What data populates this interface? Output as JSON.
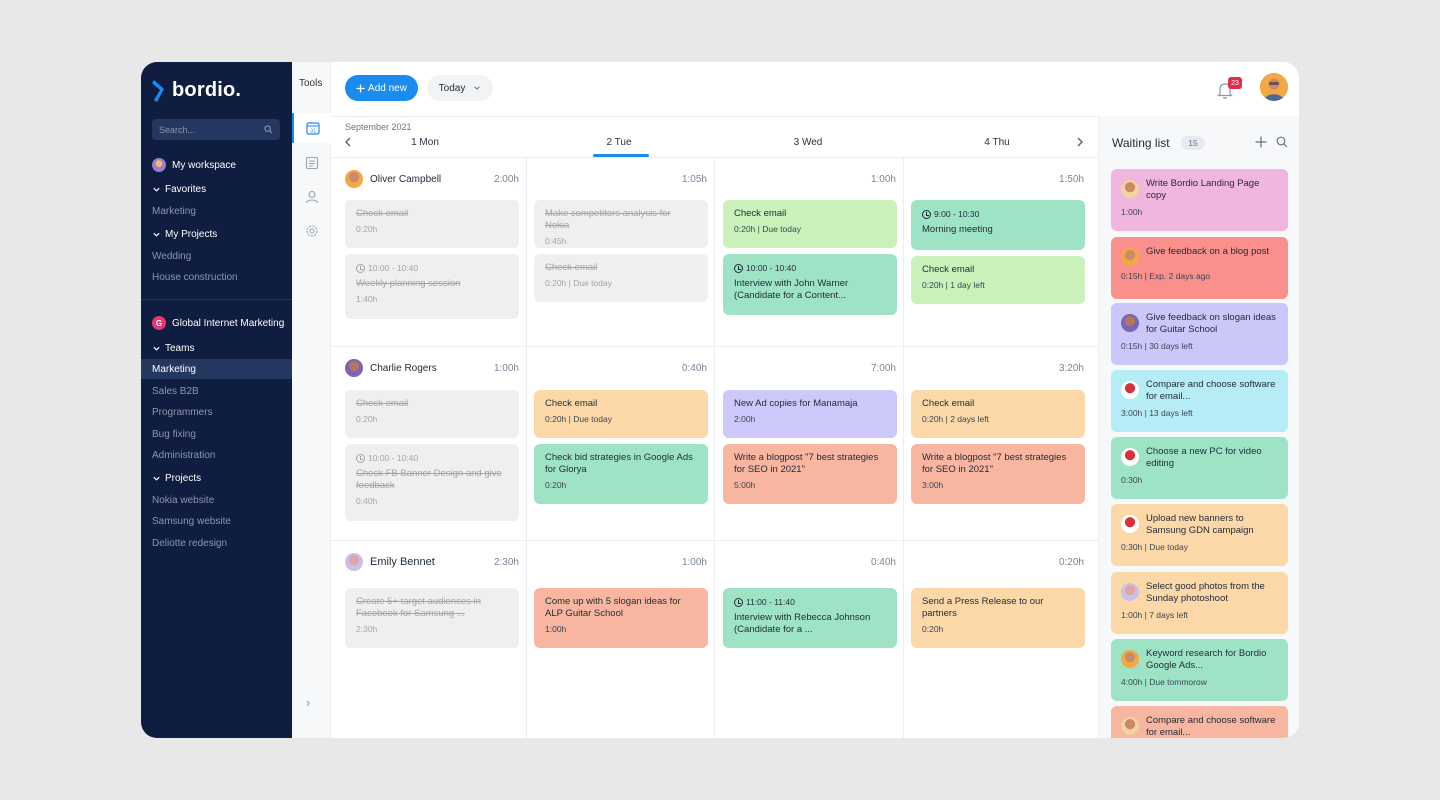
{
  "sidebar": {
    "logo": "bordio.",
    "search_placeholder": "Search...",
    "workspace": "My workspace",
    "favorites": "Favorites",
    "favorites_items": [
      "Marketing"
    ],
    "my_projects": "My Projects",
    "my_projects_items": [
      "Wedding",
      "House construction"
    ],
    "org": "Global Internet Marketing",
    "org_letter": "G",
    "teams": "Teams",
    "teams_items": [
      "Marketing",
      "Sales B2B",
      "Programmers",
      "Bug fixing",
      "Administration"
    ],
    "projects": "Projects",
    "projects_items": [
      "Nokia website",
      "Samsung website",
      "Deliotte redesign"
    ],
    "collapse_icon": "›"
  },
  "tools": {
    "label": "Tools",
    "calendar_day": "31"
  },
  "topbar": {
    "add_new": "Add new",
    "today": "Today",
    "notification_count": "23"
  },
  "calendar": {
    "month": "September 2021",
    "days": [
      "1 Mon",
      "2 Tue",
      "3 Wed",
      "4 Thu"
    ],
    "rows": [
      {
        "name": "Oliver Campbell",
        "hours": [
          "2:00h",
          "1:05h",
          "1:00h",
          "1:50h"
        ],
        "cards": [
          {
            "title": "Check email",
            "meta": "0:20h"
          },
          {
            "time": "10:00 - 10:40",
            "title": "Weekly planning session",
            "meta": "1:40h"
          },
          {
            "title": "Make competitors analysis for Nokia",
            "meta": "0:45h"
          },
          {
            "title": "Check email",
            "meta": "0:20h | Due today"
          },
          {
            "title": "Check email",
            "meta": "0:20h | Due today"
          },
          {
            "time": "10:00 - 10:40",
            "title": "Interview with John Warner (Candidate for a Content...",
            "meta": ""
          },
          {
            "time": "9:00 - 10:30",
            "title": "Morning meeting",
            "meta": ""
          },
          {
            "title": "Check email",
            "meta": "0:20h | 1 day left"
          }
        ]
      },
      {
        "name": "Charlie Rogers",
        "hours": [
          "1:00h",
          "0:40h",
          "7:00h",
          "3:20h"
        ],
        "cards": [
          {
            "title": "Check email",
            "meta": "0:20h"
          },
          {
            "time": "10:00 - 10:40",
            "title": "Check FB Banner Design and give feedback",
            "meta": "0:40h"
          },
          {
            "title": "Check email",
            "meta": "0:20h | Due today"
          },
          {
            "title": "Check bid strategies in Google Ads for Glorya",
            "meta": "0:20h"
          },
          {
            "title": "New Ad copies for Manamaja",
            "meta": "2:00h"
          },
          {
            "title": "Write a blogpost \"7 best strategies for SEO in 2021\"",
            "meta": "5:00h"
          },
          {
            "title": "Check email",
            "meta": "0:20h | 2 days left"
          },
          {
            "title": "Write a blogpost \"7 best strategies for SEO in 2021\"",
            "meta": "3:00h"
          }
        ]
      },
      {
        "name": "Emily Bennet",
        "hours": [
          "2:30h",
          "1:00h",
          "0:40h",
          "0:20h"
        ],
        "cards": [
          {
            "title": "Create 5+ target audiences in Facebook for Samsung ...",
            "meta": "2:30h"
          },
          {
            "title": "Come up with 5 slogan ideas for ALP Guitar School",
            "meta": "1:00h"
          },
          {
            "time": "11:00 - 11:40",
            "title": "Interview with Rebecca Johnson (Candidate for a ...",
            "meta": ""
          },
          {
            "title": "Send a Press Release to our partners",
            "meta": "0:20h"
          }
        ]
      }
    ]
  },
  "waiting": {
    "title": "Waiting list",
    "count": "15",
    "items": [
      {
        "title": "Write Bordio Landing Page copy",
        "meta": "1:00h"
      },
      {
        "title": "Give feedback on a blog post",
        "meta": "0:15h | Exp. 2 days ago"
      },
      {
        "title": "Give feedback on slogan ideas for Guitar School",
        "meta": "0:15h | 30 days left"
      },
      {
        "title": "Compare and choose software for email...",
        "meta": "3:00h | 13 days left"
      },
      {
        "title": "Choose a new PC for video editing",
        "meta": "0:30h"
      },
      {
        "title": "Upload new banners to Samsung GDN campaign",
        "meta": "0:30h | Due today"
      },
      {
        "title": "Select good photos from the Sunday photoshoot",
        "meta": "1:00h | 7 days left"
      },
      {
        "title": "Keyword research for Bordio Google Ads...",
        "meta": "4:00h | Due tommorow"
      },
      {
        "title": "Compare and choose software for email...",
        "meta": ""
      }
    ]
  },
  "colors": {
    "accent": "#1a8cf0",
    "sidebar": "#0f1d40",
    "done_card": "#efefef",
    "green": "#c9f1b9",
    "teal": "#9fe3c7",
    "orange": "#fcd8a8",
    "salmon": "#f8b5a0",
    "purple": "#cdc8fa"
  }
}
